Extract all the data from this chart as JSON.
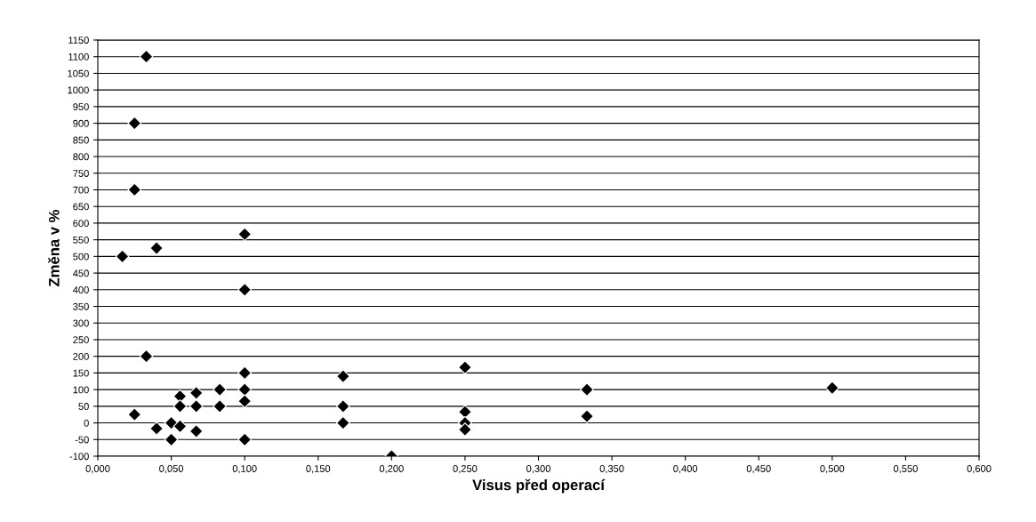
{
  "chart_data": {
    "type": "scatter",
    "xlabel": "Visus před operací",
    "ylabel": "Změna v %",
    "marker": "diamond",
    "grid": "y",
    "legend": false,
    "series": [
      {
        "color": "#000000",
        "x": [
          0.033,
          0.025,
          0.025,
          0.0167,
          0.04,
          0.1,
          0.1,
          0.033,
          0.025,
          0.04,
          0.05,
          0.05,
          0.056,
          0.056,
          0.056,
          0.067,
          0.067,
          0.067,
          0.083,
          0.083,
          0.1,
          0.1,
          0.1,
          0.1,
          0.167,
          0.167,
          0.167,
          0.2,
          0.25,
          0.25,
          0.25,
          0.25,
          0.333,
          0.333,
          0.5
        ],
        "values": [
          1100,
          900,
          700,
          500,
          525,
          567,
          400,
          200,
          25,
          -17,
          0,
          -50,
          80,
          50,
          -10,
          90,
          50,
          -25,
          100,
          50,
          150,
          100,
          65,
          -50,
          140,
          50,
          0,
          -100,
          167,
          33,
          0,
          -20,
          100,
          20,
          105
        ]
      }
    ],
    "xlim": [
      0,
      0.6
    ],
    "xticks": [
      {
        "value": 0,
        "label": "0,000"
      },
      {
        "value": 0.05,
        "label": "0,050"
      },
      {
        "value": 0.1,
        "label": "0,100"
      },
      {
        "value": 0.15,
        "label": "0,150"
      },
      {
        "value": 0.2,
        "label": "0,200"
      },
      {
        "value": 0.25,
        "label": "0,250"
      },
      {
        "value": 0.3,
        "label": "0,300"
      },
      {
        "value": 0.35,
        "label": "0,350"
      },
      {
        "value": 0.4,
        "label": "0,400"
      },
      {
        "value": 0.45,
        "label": "0,450"
      },
      {
        "value": 0.5,
        "label": "0,500"
      },
      {
        "value": 0.55,
        "label": "0,550"
      },
      {
        "value": 0.6,
        "label": "0,600"
      }
    ],
    "ylim": [
      -100,
      1150
    ],
    "yticks": [
      -100,
      -50,
      0,
      50,
      100,
      150,
      200,
      250,
      300,
      350,
      400,
      450,
      500,
      550,
      600,
      650,
      700,
      750,
      800,
      850,
      900,
      950,
      1000,
      1050,
      1100,
      1150
    ]
  }
}
